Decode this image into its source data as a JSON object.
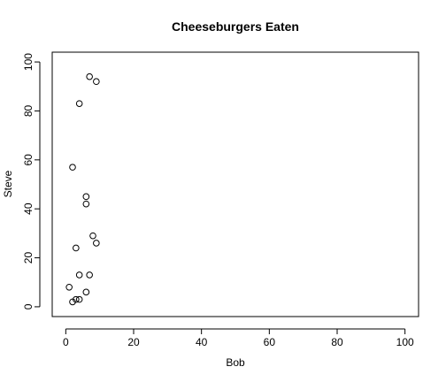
{
  "chart_data": {
    "type": "scatter",
    "title": "Cheeseburgers Eaten",
    "xlabel": "Bob",
    "ylabel": "Steve",
    "xlim": [
      -4,
      104
    ],
    "ylim": [
      -4,
      104
    ],
    "x_ticks": [
      0,
      20,
      40,
      60,
      80,
      100
    ],
    "y_ticks": [
      0,
      20,
      40,
      60,
      80,
      100
    ],
    "grid": false,
    "marker": "open-circle",
    "color": "#000000",
    "points": [
      {
        "x": 7,
        "y": 94
      },
      {
        "x": 9,
        "y": 92
      },
      {
        "x": 4,
        "y": 83
      },
      {
        "x": 2,
        "y": 57
      },
      {
        "x": 6,
        "y": 45
      },
      {
        "x": 6,
        "y": 42
      },
      {
        "x": 8,
        "y": 29
      },
      {
        "x": 9,
        "y": 26
      },
      {
        "x": 3,
        "y": 24
      },
      {
        "x": 4,
        "y": 13
      },
      {
        "x": 7,
        "y": 13
      },
      {
        "x": 1,
        "y": 8
      },
      {
        "x": 6,
        "y": 6
      },
      {
        "x": 3,
        "y": 3
      },
      {
        "x": 4,
        "y": 3
      },
      {
        "x": 2,
        "y": 2
      }
    ]
  }
}
